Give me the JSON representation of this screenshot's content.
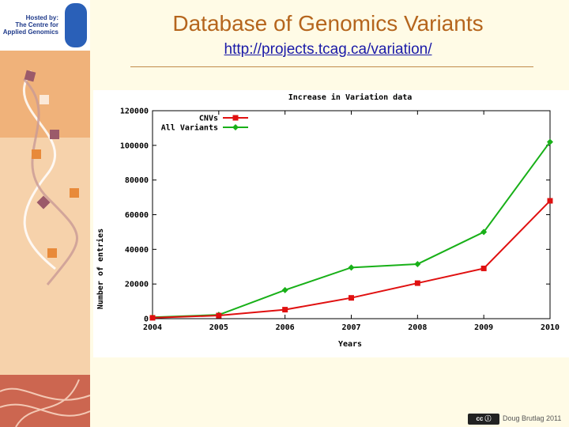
{
  "sidebar": {
    "logo_text": "Hosted by:\nThe Centre for\nApplied Genomics"
  },
  "header": {
    "title": "Database of Genomics Variants",
    "url": "http://projects.tcag.ca/variation/"
  },
  "footer": {
    "cc_badge": "cc ⓘ",
    "author": "Doug Brutlag 2011"
  },
  "colors": {
    "title": "#b5651d",
    "cnv_series": "#e01010",
    "all_variants_series": "#18b018"
  },
  "chart_data": {
    "type": "line",
    "title": "Increase in Variation data",
    "xlabel": "Years",
    "ylabel": "Number of entries",
    "x": [
      2004,
      2005,
      2006,
      2007,
      2008,
      2009,
      2010
    ],
    "xlim": [
      2004,
      2010
    ],
    "ylim": [
      0,
      120000
    ],
    "yticks": [
      0,
      20000,
      40000,
      60000,
      80000,
      100000,
      120000
    ],
    "grid": false,
    "legend_position": "top-left",
    "series": [
      {
        "name": "CNVs",
        "color": "#e01010",
        "marker": "square",
        "values": [
          500,
          1800,
          5200,
          12000,
          20500,
          29000,
          68000
        ]
      },
      {
        "name": "All Variants",
        "color": "#18b018",
        "marker": "diamond",
        "values": [
          800,
          2200,
          16500,
          29500,
          31500,
          50000,
          102000
        ]
      }
    ]
  }
}
